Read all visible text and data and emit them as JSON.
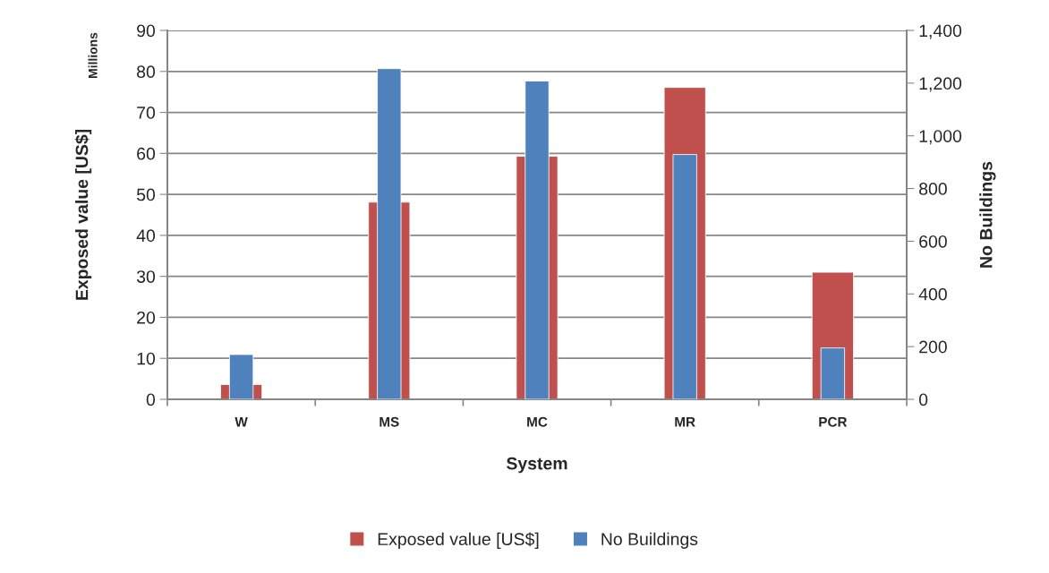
{
  "chart_data": {
    "type": "bar",
    "xlabel": "System",
    "ylabel": "Exposed value [US$]",
    "y2label": "No Buildings",
    "categories": [
      "W",
      "MS",
      "MC",
      "MR",
      "PCR"
    ],
    "series": [
      {
        "name": "Exposed value [US$]",
        "color": "#c0504d",
        "values": [
          3.6,
          48.1,
          59.3,
          76.1,
          31.0
        ]
      },
      {
        "name": "No Buildings",
        "color": "#4f81bd",
        "axis": "y2",
        "values": [
          170,
          1255,
          1208,
          929,
          195
        ]
      }
    ],
    "ylim": [
      0,
      90
    ],
    "yticks": [
      0,
      10,
      20,
      30,
      40,
      50,
      60,
      70,
      80,
      90
    ],
    "y2lim": [
      0,
      1400
    ],
    "y2ticks": [
      0,
      {
        "value": 200,
        "label": "200"
      },
      {
        "value": 400,
        "label": "400"
      },
      {
        "value": 600,
        "label": "600"
      },
      {
        "value": 800,
        "label": "800"
      },
      {
        "value": 1000,
        "label": "1,000"
      },
      {
        "value": 1200,
        "label": "1,200"
      },
      {
        "value": 1400,
        "label": "1,400"
      }
    ],
    "annotations": [
      "Millions"
    ],
    "grid": "y",
    "legend": "bottom"
  }
}
